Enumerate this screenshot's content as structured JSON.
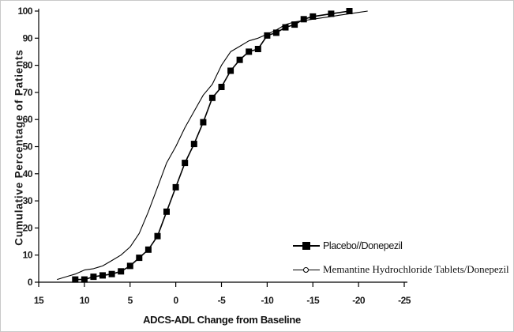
{
  "figure": {
    "background": "#ffffff",
    "axis_color": "#000000",
    "series_color": "#000000"
  },
  "chart_data": {
    "type": "line",
    "title": "",
    "xlabel": "ADCS-ADL Change from Baseline",
    "ylabel": "Cumulative Percentage of Patients",
    "x_axis": {
      "ticks": [
        15,
        10,
        5,
        0,
        -5,
        -10,
        -15,
        -20,
        -25
      ],
      "range": [
        15,
        -25
      ],
      "reversed": true,
      "grid": false
    },
    "y_axis": {
      "ticks": [
        0,
        10,
        20,
        30,
        40,
        50,
        60,
        70,
        80,
        90,
        100
      ],
      "range": [
        0,
        100
      ],
      "grid": false
    },
    "legend": {
      "position": "lower-right",
      "entries": [
        {
          "label": "Placebo//Donepezil",
          "marker": "filled-square",
          "font": "sans"
        },
        {
          "label": "Memantine Hydrochloride Tablets/Donepezil",
          "marker": "open-circle",
          "font": "serif"
        }
      ]
    },
    "series": [
      {
        "name": "Placebo//Donepezil",
        "marker": "filled-square",
        "marker_size": 8,
        "line_width": 1.6,
        "color": "#000000",
        "points": [
          [
            11,
            1
          ],
          [
            10,
            1
          ],
          [
            9,
            2
          ],
          [
            8,
            2.5
          ],
          [
            7,
            3
          ],
          [
            6,
            4
          ],
          [
            5,
            6
          ],
          [
            4,
            9
          ],
          [
            3,
            12
          ],
          [
            2,
            17
          ],
          [
            1,
            26
          ],
          [
            0,
            35
          ],
          [
            -1,
            44
          ],
          [
            -2,
            51
          ],
          [
            -3,
            59
          ],
          [
            -4,
            68
          ],
          [
            -5,
            72
          ],
          [
            -6,
            78
          ],
          [
            -7,
            82
          ],
          [
            -8,
            85
          ],
          [
            -9,
            86
          ],
          [
            -10,
            91
          ],
          [
            -11,
            92
          ],
          [
            -12,
            94
          ],
          [
            -13,
            95
          ],
          [
            -14,
            97
          ],
          [
            -15,
            98
          ],
          [
            -17,
            99
          ],
          [
            -19,
            100
          ]
        ]
      },
      {
        "name": "Memantine Hydrochloride Tablets/Donepezil",
        "marker": "none",
        "marker_size": 0,
        "line_width": 1.1,
        "color": "#000000",
        "points": [
          [
            13,
            1
          ],
          [
            12,
            2
          ],
          [
            11,
            3
          ],
          [
            10,
            4.5
          ],
          [
            9,
            5
          ],
          [
            8,
            6
          ],
          [
            7,
            8
          ],
          [
            6,
            10
          ],
          [
            5,
            13
          ],
          [
            4,
            18
          ],
          [
            3,
            26
          ],
          [
            2,
            35
          ],
          [
            1,
            44
          ],
          [
            0,
            50
          ],
          [
            -1,
            57
          ],
          [
            -2,
            63
          ],
          [
            -3,
            69
          ],
          [
            -4,
            73
          ],
          [
            -5,
            80
          ],
          [
            -6,
            85
          ],
          [
            -7,
            87
          ],
          [
            -8,
            89
          ],
          [
            -9,
            90
          ],
          [
            -10,
            91.5
          ],
          [
            -11,
            93
          ],
          [
            -12,
            95
          ],
          [
            -13,
            96
          ],
          [
            -14,
            96.5
          ],
          [
            -15,
            97
          ],
          [
            -16,
            97.5
          ],
          [
            -17,
            98
          ],
          [
            -18,
            98.5
          ],
          [
            -19,
            99
          ],
          [
            -20,
            99.5
          ],
          [
            -21,
            100
          ]
        ]
      }
    ]
  }
}
